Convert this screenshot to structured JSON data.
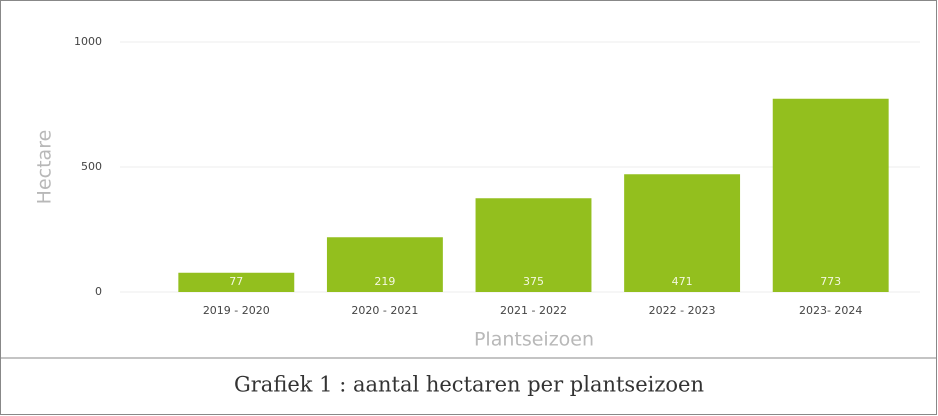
{
  "chart_data": {
    "type": "bar",
    "caption": "Grafiek 1 : aantal hectaren per plantseizoen",
    "xlabel": "Plantseizoen",
    "ylabel": "Hectare",
    "categories": [
      "2019 - 2020",
      "2020 - 2021",
      "2021 - 2022",
      "2022 - 2023",
      "2023- 2024"
    ],
    "values": [
      77,
      219,
      375,
      471,
      773
    ],
    "color": "#93bf1e",
    "ylim": [
      0,
      1000
    ],
    "yticks": [
      0,
      500,
      1000
    ],
    "grid": true
  }
}
